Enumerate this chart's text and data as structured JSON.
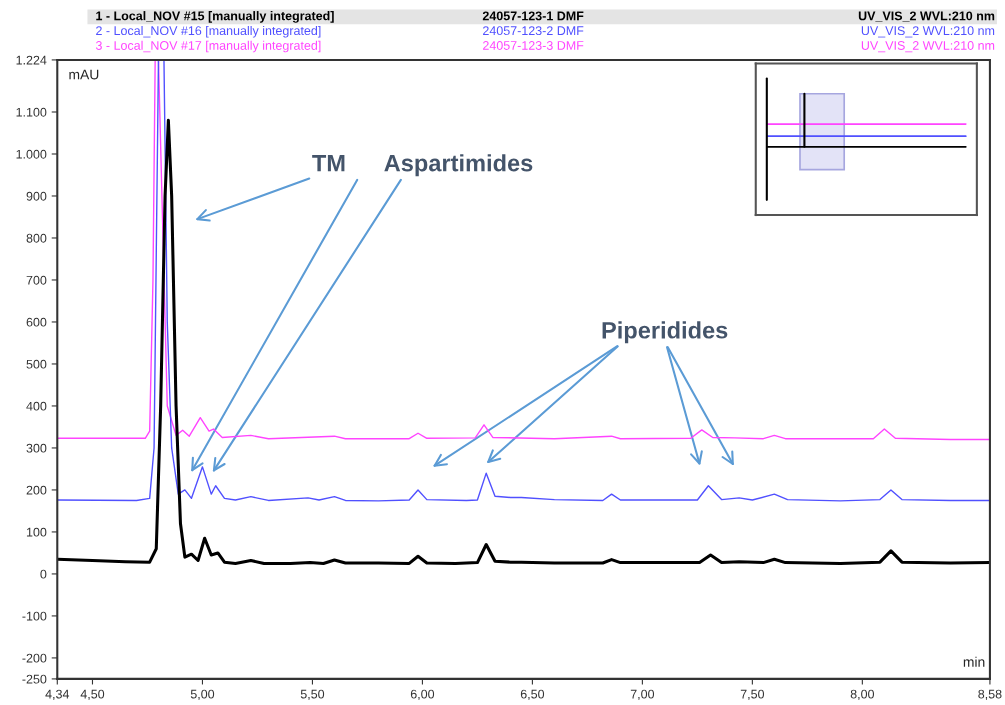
{
  "chart_data": {
    "type": "line",
    "xlabel": "min",
    "ylabel": "mAU",
    "xlim": [
      4.34,
      8.58
    ],
    "xticks": [
      {
        "value": 4.34,
        "label": "4,34"
      },
      {
        "value": 4.5,
        "label": "4,50"
      },
      {
        "value": 5.0,
        "label": "5,00"
      },
      {
        "value": 5.5,
        "label": "5,50"
      },
      {
        "value": 6.0,
        "label": "6,00"
      },
      {
        "value": 6.5,
        "label": "6,50"
      },
      {
        "value": 7.0,
        "label": "7,00"
      },
      {
        "value": 7.5,
        "label": "7,50"
      },
      {
        "value": 8.0,
        "label": "8,00"
      },
      {
        "value": 8.58,
        "label": "8,58"
      }
    ],
    "ylim": [
      -250,
      1224
    ],
    "yticks": [
      -250,
      -200,
      -100,
      0,
      100,
      200,
      300,
      400,
      500,
      600,
      700,
      800,
      900,
      {
        "value": 1000,
        "label": "1.000"
      },
      {
        "value": 1100,
        "label": "1.100"
      },
      {
        "value": 1224,
        "label": "1.224"
      }
    ],
    "grid": false,
    "legend": "top",
    "marker": "none",
    "line_style": "solid",
    "series": [
      {
        "name": "3 - Local_NOV #17 [manually integrated]",
        "color": "#ff44ff",
        "x": [
          4.34,
          4.74,
          4.76,
          4.775,
          4.785,
          4.8,
          4.84,
          4.88,
          4.91,
          4.94,
          4.99,
          5.03,
          5.05,
          5.09,
          5.22,
          5.3,
          5.6,
          5.65,
          5.94,
          5.98,
          6.02,
          6.24,
          6.28,
          6.32,
          6.6,
          6.86,
          6.9,
          7.22,
          7.27,
          7.32,
          7.42,
          7.55,
          7.6,
          7.65,
          8.05,
          8.1,
          8.15,
          8.4,
          8.58
        ],
        "values": [
          323,
          323,
          340,
          700,
          1224,
          1224,
          400,
          330,
          342,
          328,
          372,
          340,
          345,
          325,
          330,
          322,
          328,
          322,
          322,
          335,
          323,
          324,
          355,
          325,
          322,
          328,
          322,
          323,
          343,
          325,
          324,
          322,
          330,
          322,
          322,
          345,
          323,
          320,
          320
        ]
      },
      {
        "name": "2 - Local_NOV #16 [manually integrated]",
        "color": "#5050ff",
        "x": [
          4.34,
          4.7,
          4.76,
          4.78,
          4.8,
          4.825,
          4.84,
          4.86,
          4.89,
          4.92,
          4.95,
          5.0,
          5.04,
          5.06,
          5.1,
          5.15,
          5.22,
          5.3,
          5.48,
          5.53,
          5.6,
          5.65,
          5.8,
          5.94,
          5.98,
          6.02,
          6.2,
          6.25,
          6.29,
          6.33,
          6.4,
          6.45,
          6.6,
          6.82,
          6.86,
          6.9,
          7.1,
          7.25,
          7.3,
          7.36,
          7.44,
          7.5,
          7.6,
          7.66,
          7.9,
          8.08,
          8.13,
          8.18,
          8.4,
          8.58
        ],
        "values": [
          176,
          175,
          180,
          300,
          1224,
          1224,
          600,
          300,
          190,
          200,
          180,
          255,
          190,
          210,
          180,
          176,
          184,
          175,
          181,
          176,
          184,
          175,
          174,
          176,
          200,
          177,
          175,
          176,
          240,
          185,
          182,
          182,
          177,
          175,
          190,
          176,
          176,
          176,
          210,
          177,
          181,
          176,
          190,
          177,
          174,
          177,
          200,
          177,
          175,
          175
        ]
      },
      {
        "name": "1 - Local_NOV #15 [manually integrated]",
        "color": "#000000",
        "x": [
          4.34,
          4.5,
          4.65,
          4.76,
          4.79,
          4.81,
          4.83,
          4.845,
          4.86,
          4.88,
          4.9,
          4.92,
          4.95,
          4.98,
          5.01,
          5.04,
          5.07,
          5.1,
          5.15,
          5.22,
          5.28,
          5.4,
          5.49,
          5.55,
          5.6,
          5.65,
          5.8,
          5.94,
          5.98,
          6.02,
          6.15,
          6.25,
          6.29,
          6.33,
          6.4,
          6.45,
          6.6,
          6.82,
          6.86,
          6.9,
          7.1,
          7.26,
          7.31,
          7.36,
          7.44,
          7.55,
          7.6,
          7.65,
          7.9,
          8.08,
          8.13,
          8.18,
          8.4,
          8.58
        ],
        "values": [
          35,
          32,
          29,
          28,
          60,
          400,
          900,
          1080,
          900,
          400,
          120,
          40,
          47,
          32,
          85,
          45,
          50,
          28,
          25,
          32,
          25,
          25,
          27,
          25,
          33,
          26,
          26,
          25,
          42,
          26,
          25,
          27,
          70,
          30,
          28,
          28,
          26,
          26,
          34,
          27,
          27,
          27,
          45,
          27,
          29,
          27,
          35,
          27,
          25,
          28,
          55,
          28,
          26,
          27
        ]
      }
    ],
    "annotations": [
      "24057-123-3 DMF",
      "UV_VIS_2 WVL:210 nm",
      "24057-123-2 DMF",
      "UV_VIS_2 WVL:210 nm",
      "24057-123-1 DMF",
      "UV_VIS_2 WVL:210 nm",
      "TM",
      "Aspartimides",
      "Piperidides"
    ]
  }
}
